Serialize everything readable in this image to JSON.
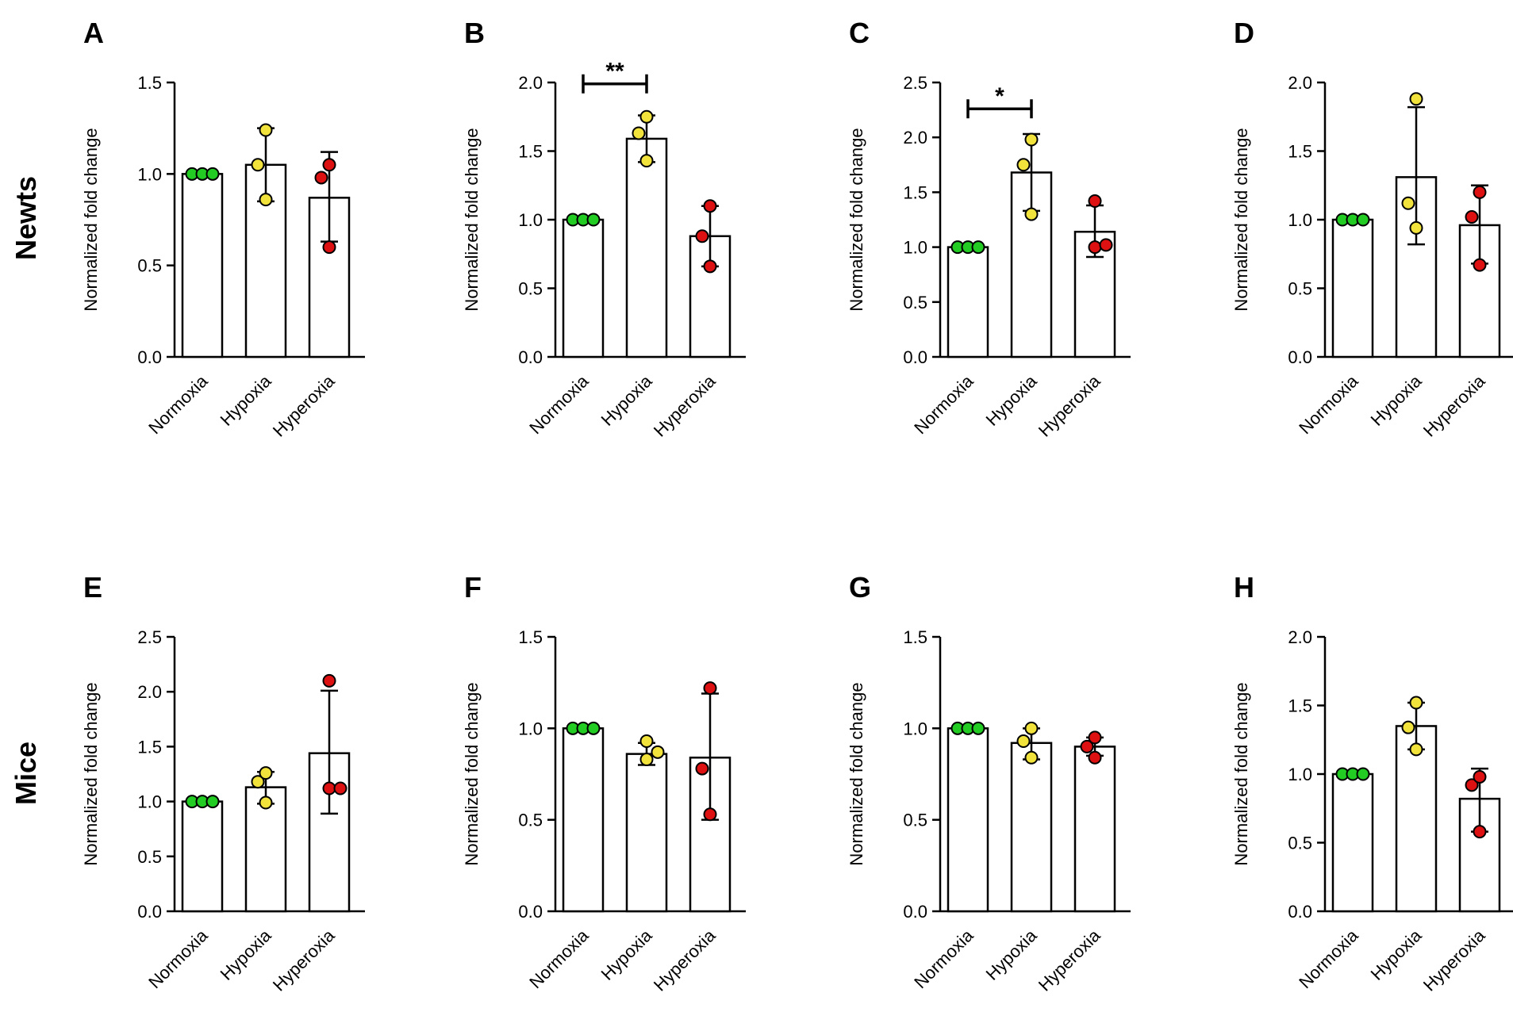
{
  "row_labels": [
    "Newts",
    "Mice"
  ],
  "colors": {
    "Normoxia": "#22cc22",
    "Hypoxia": "#f2e33c",
    "Hyperoxia": "#dd1111"
  },
  "chart_data": [
    {
      "panel": "A",
      "row": "Newts",
      "type": "bar",
      "ylabel": "Normalized fold change",
      "categories": [
        "Normoxia",
        "Hypoxia",
        "Hyperoxia"
      ],
      "yticks": [
        "0.0",
        "0.5",
        "1.0",
        "1.5"
      ],
      "ylim": [
        0,
        1.5
      ],
      "values": [
        1.0,
        1.05,
        0.87
      ],
      "error": [
        [
          1.0,
          1.0
        ],
        [
          0.85,
          1.25
        ],
        [
          0.63,
          1.12
        ]
      ],
      "points": [
        [
          1.0,
          1.0,
          1.0
        ],
        [
          0.86,
          1.05,
          1.24
        ],
        [
          0.6,
          0.98,
          1.05
        ]
      ],
      "significance": []
    },
    {
      "panel": "B",
      "row": "Newts",
      "type": "bar",
      "ylabel": "Normalized fold change",
      "categories": [
        "Normoxia",
        "Hypoxia",
        "Hyperoxia"
      ],
      "yticks": [
        "0.0",
        "0.5",
        "1.0",
        "1.5",
        "2.0"
      ],
      "ylim": [
        0,
        2.0
      ],
      "values": [
        1.0,
        1.59,
        0.88
      ],
      "error": [
        [
          1.0,
          1.0
        ],
        [
          1.42,
          1.76
        ],
        [
          0.66,
          1.1
        ]
      ],
      "points": [
        [
          1.0,
          1.0,
          1.0
        ],
        [
          1.43,
          1.63,
          1.75
        ],
        [
          0.66,
          0.88,
          1.1
        ]
      ],
      "significance": [
        {
          "from": 0,
          "to": 1,
          "y": 1.99,
          "label": "**"
        }
      ]
    },
    {
      "panel": "C",
      "row": "Newts",
      "type": "bar",
      "ylabel": "Normalized fold change",
      "categories": [
        "Normoxia",
        "Hypoxia",
        "Hyperoxia"
      ],
      "yticks": [
        "0.0",
        "0.5",
        "1.0",
        "1.5",
        "2.0",
        "2.5"
      ],
      "ylim": [
        0,
        2.5
      ],
      "values": [
        1.0,
        1.68,
        1.14
      ],
      "error": [
        [
          1.0,
          1.0
        ],
        [
          1.33,
          2.03
        ],
        [
          0.91,
          1.38
        ]
      ],
      "points": [
        [
          1.0,
          1.0,
          1.0
        ],
        [
          1.3,
          1.75,
          1.98
        ],
        [
          1.0,
          1.02,
          1.42
        ]
      ],
      "significance": [
        {
          "from": 0,
          "to": 1,
          "y": 2.26,
          "label": "*"
        }
      ]
    },
    {
      "panel": "D",
      "row": "Newts",
      "type": "bar",
      "ylabel": "Normalized fold change",
      "categories": [
        "Normoxia",
        "Hypoxia",
        "Hyperoxia"
      ],
      "yticks": [
        "0.0",
        "0.5",
        "1.0",
        "1.5",
        "2.0"
      ],
      "ylim": [
        0,
        2.0
      ],
      "values": [
        1.0,
        1.31,
        0.96
      ],
      "error": [
        [
          1.0,
          1.0
        ],
        [
          0.82,
          1.82
        ],
        [
          0.68,
          1.25
        ]
      ],
      "points": [
        [
          1.0,
          1.0,
          1.0
        ],
        [
          0.94,
          1.12,
          1.88
        ],
        [
          0.67,
          1.02,
          1.2
        ]
      ],
      "significance": []
    },
    {
      "panel": "E",
      "row": "Mice",
      "type": "bar",
      "ylabel": "Normalized fold change",
      "categories": [
        "Normoxia",
        "Hypoxia",
        "Hyperoxia"
      ],
      "yticks": [
        "0.0",
        "0.5",
        "1.0",
        "1.5",
        "2.0",
        "2.5"
      ],
      "ylim": [
        0,
        2.5
      ],
      "values": [
        1.0,
        1.13,
        1.44
      ],
      "error": [
        [
          1.0,
          1.0
        ],
        [
          0.98,
          1.27
        ],
        [
          0.89,
          2.01
        ]
      ],
      "points": [
        [
          1.0,
          1.0,
          1.0
        ],
        [
          0.99,
          1.18,
          1.26
        ],
        [
          1.12,
          1.12,
          2.1
        ]
      ],
      "significance": []
    },
    {
      "panel": "F",
      "row": "Mice",
      "type": "bar",
      "ylabel": "Normalized fold change",
      "categories": [
        "Normoxia",
        "Hypoxia",
        "Hyperoxia"
      ],
      "yticks": [
        "0.0",
        "0.5",
        "1.0",
        "1.5"
      ],
      "ylim": [
        0,
        1.5
      ],
      "values": [
        1.0,
        0.86,
        0.84
      ],
      "error": [
        [
          1.0,
          1.0
        ],
        [
          0.8,
          0.92
        ],
        [
          0.5,
          1.19
        ]
      ],
      "points": [
        [
          1.0,
          1.0,
          1.0
        ],
        [
          0.83,
          0.87,
          0.93
        ],
        [
          0.53,
          0.78,
          1.22
        ]
      ],
      "significance": []
    },
    {
      "panel": "G",
      "row": "Mice",
      "type": "bar",
      "ylabel": "Normalized fold change",
      "categories": [
        "Normoxia",
        "Hypoxia",
        "Hyperoxia"
      ],
      "yticks": [
        "0.0",
        "0.5",
        "1.0",
        "1.5"
      ],
      "ylim": [
        0,
        1.5
      ],
      "values": [
        1.0,
        0.92,
        0.9
      ],
      "error": [
        [
          1.0,
          1.0
        ],
        [
          0.83,
          1.0
        ],
        [
          0.85,
          0.95
        ]
      ],
      "points": [
        [
          1.0,
          1.0,
          1.0
        ],
        [
          0.84,
          0.93,
          1.0
        ],
        [
          0.84,
          0.9,
          0.95
        ]
      ],
      "significance": []
    },
    {
      "panel": "H",
      "row": "Mice",
      "type": "bar",
      "ylabel": "Normalized fold change",
      "categories": [
        "Normoxia",
        "Hypoxia",
        "Hyperoxia"
      ],
      "yticks": [
        "0.0",
        "0.5",
        "1.0",
        "1.5",
        "2.0"
      ],
      "ylim": [
        0,
        2.0
      ],
      "values": [
        1.0,
        1.35,
        0.82
      ],
      "error": [
        [
          1.0,
          1.0
        ],
        [
          1.18,
          1.52
        ],
        [
          0.58,
          1.04
        ]
      ],
      "points": [
        [
          1.0,
          1.0,
          1.0
        ],
        [
          1.18,
          1.34,
          1.52
        ],
        [
          0.58,
          0.92,
          0.98
        ]
      ],
      "significance": []
    }
  ]
}
